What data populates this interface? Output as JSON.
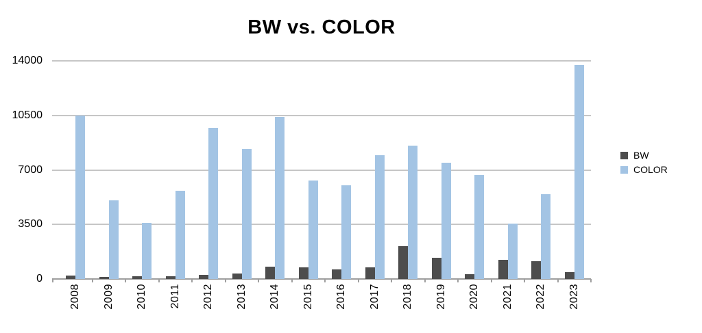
{
  "chart_data": {
    "type": "bar",
    "title": "BW vs. COLOR",
    "categories": [
      "2008",
      "2009",
      "2010",
      "2011",
      "2012",
      "2013",
      "2014",
      "2015",
      "2016",
      "2017",
      "2018",
      "2019",
      "2020",
      "2021",
      "2022",
      "2023"
    ],
    "series": [
      {
        "name": "BW",
        "color": "#4d4d4d",
        "values": [
          230,
          120,
          180,
          160,
          280,
          330,
          790,
          760,
          610,
          730,
          2100,
          1340,
          290,
          1240,
          1120,
          440
        ]
      },
      {
        "name": "COLOR",
        "color": "#a3c4e4",
        "values": [
          10500,
          5050,
          3600,
          5650,
          9700,
          8350,
          10400,
          6300,
          6000,
          7950,
          8550,
          7450,
          6650,
          3550,
          5450,
          13750
        ]
      }
    ],
    "xlabel": "",
    "ylabel": "",
    "ylim": [
      0,
      14000
    ],
    "yticks": [
      0,
      3500,
      7000,
      10500,
      14000
    ],
    "grid": true,
    "legend_position": "right",
    "colors": {
      "gridline": "#c6c6c6",
      "axis": "#9e9e9e",
      "text": "#000000",
      "background": "#ffffff"
    }
  }
}
